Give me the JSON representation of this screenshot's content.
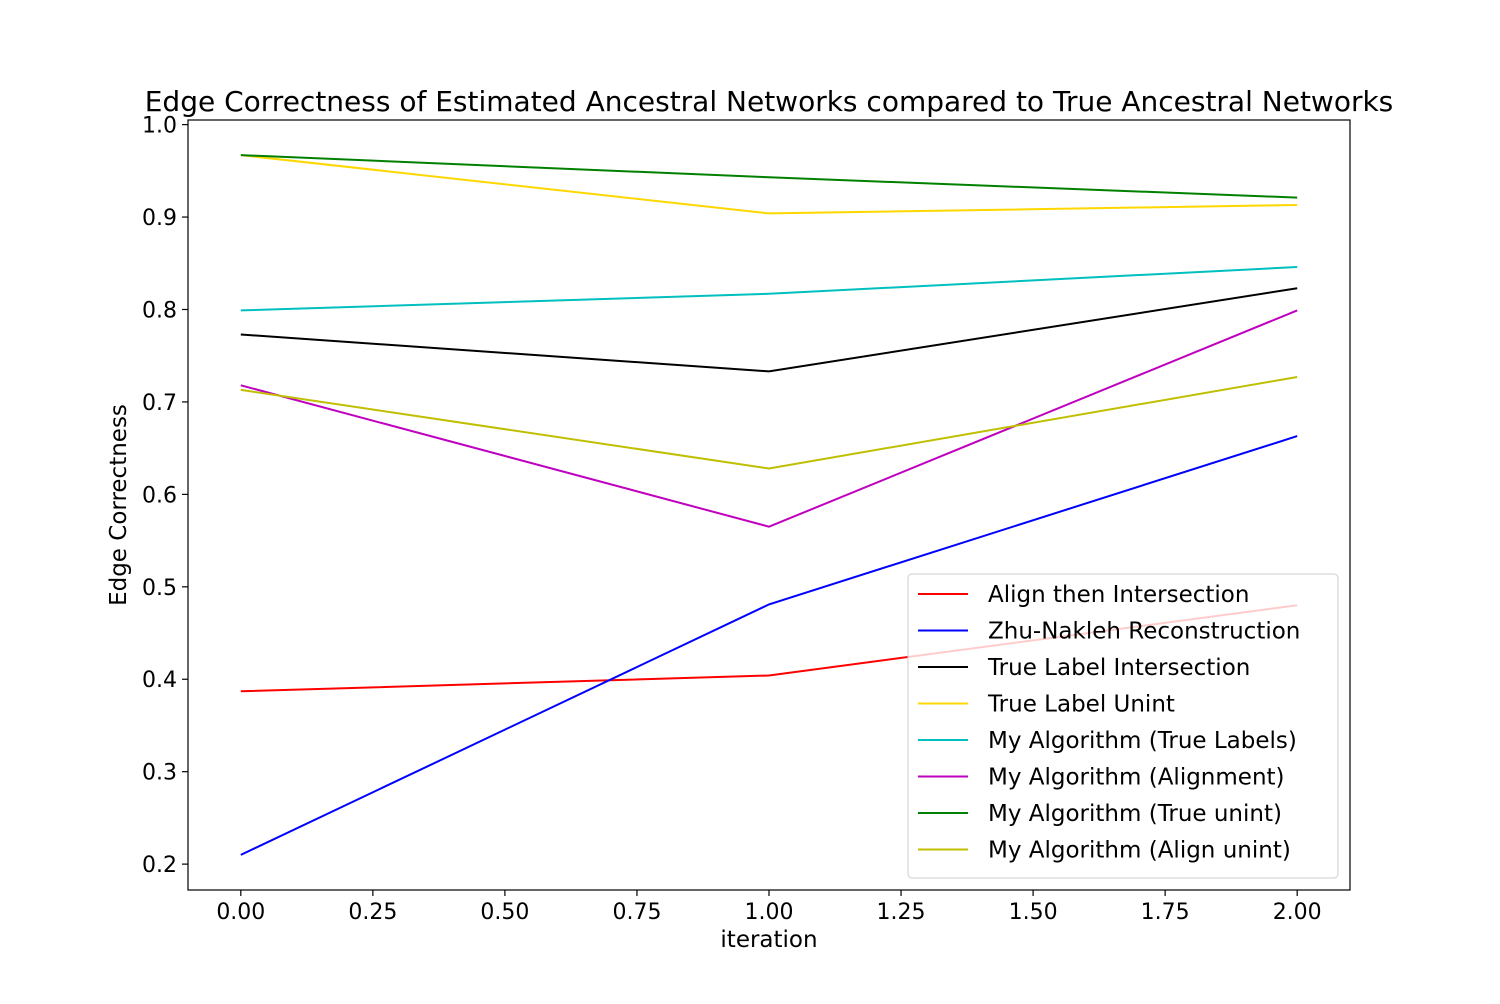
{
  "chart_data": {
    "type": "line",
    "title": "Edge Correctness of Estimated Ancestral Networks compared to True Ancestral Networks",
    "xlabel": "iteration",
    "ylabel": "Edge Correctness",
    "x": [
      0,
      1,
      2
    ],
    "xlim": [
      -0.1,
      2.1
    ],
    "ylim": [
      0.172,
      1.005
    ],
    "xticks": [
      0,
      0.25,
      0.5,
      0.75,
      1,
      1.25,
      1.5,
      1.75,
      2
    ],
    "xtick_labels": [
      "0.00",
      "0.25",
      "0.50",
      "0.75",
      "1.00",
      "1.25",
      "1.50",
      "1.75",
      "2.00"
    ],
    "yticks": [
      0.2,
      0.3,
      0.4,
      0.5,
      0.6,
      0.7,
      0.8,
      0.9,
      1.0
    ],
    "ytick_labels": [
      "0.2",
      "0.3",
      "0.4",
      "0.5",
      "0.6",
      "0.7",
      "0.8",
      "0.9",
      "1.0"
    ],
    "grid": false,
    "legend_position": "lower-right",
    "series": [
      {
        "name": "Align then Intersection",
        "color": "#ff0000",
        "values": [
          0.387,
          0.404,
          0.48
        ]
      },
      {
        "name": "Zhu-Nakleh Reconstruction",
        "color": "#0000ff",
        "values": [
          0.21,
          0.481,
          0.663
        ]
      },
      {
        "name": "True Label Intersection",
        "color": "#000000",
        "values": [
          0.773,
          0.733,
          0.823
        ]
      },
      {
        "name": "True Label Unint",
        "color": "#ffd700",
        "values": [
          0.967,
          0.904,
          0.913
        ]
      },
      {
        "name": "My Algorithm (True Labels)",
        "color": "#00bfbf",
        "values": [
          0.799,
          0.817,
          0.846
        ]
      },
      {
        "name": "My Algorithm (Alignment)",
        "color": "#bf00bf",
        "values": [
          0.718,
          0.565,
          0.799
        ]
      },
      {
        "name": "My Algorithm (True unint)",
        "color": "#008000",
        "values": [
          0.967,
          0.943,
          0.921
        ]
      },
      {
        "name": "My Algorithm (Align unint)",
        "color": "#bfbf00",
        "values": [
          0.713,
          0.628,
          0.727
        ]
      }
    ]
  }
}
